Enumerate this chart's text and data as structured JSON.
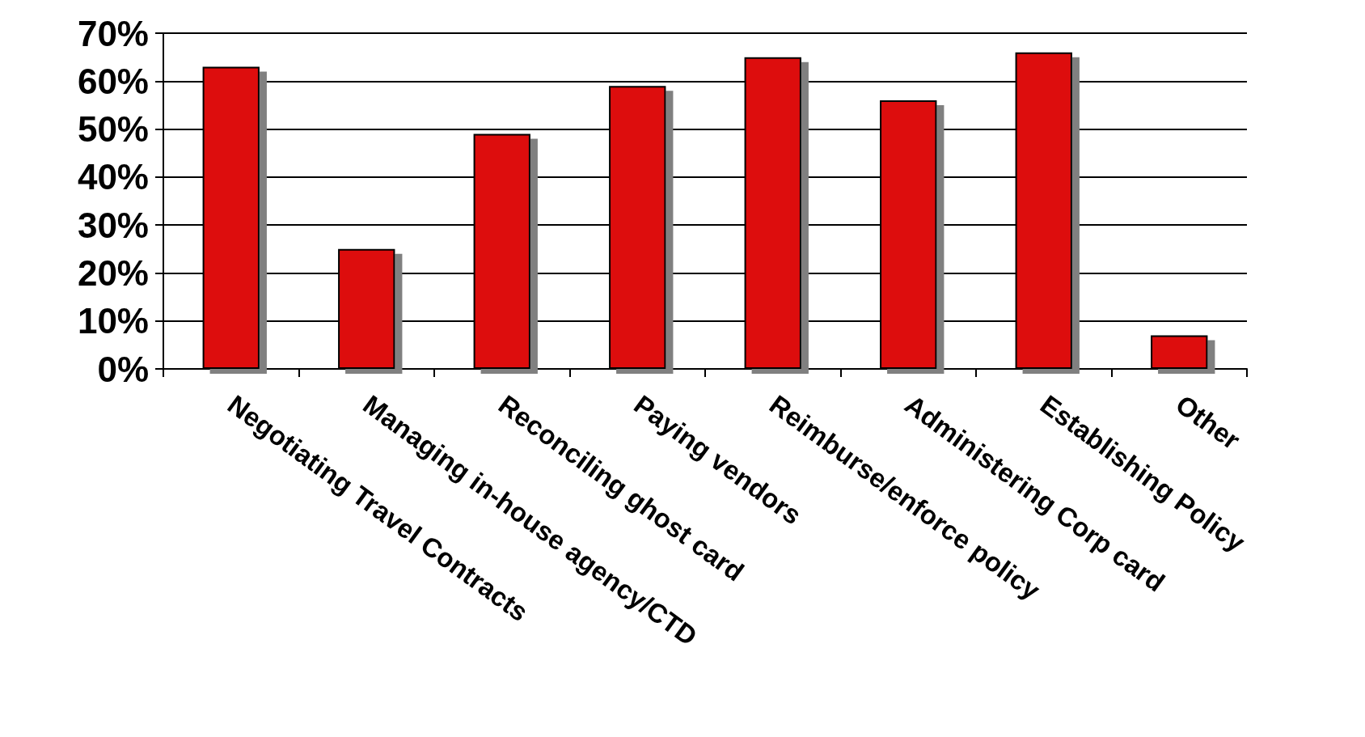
{
  "chart_data": {
    "type": "bar",
    "categories": [
      "Negotiating Travel Contracts",
      "Managing in-house agency/CTD",
      "Reconciling ghost card",
      "Paying vendors",
      "Reimburse/enforce policy",
      "Administering Corp card",
      "Establishing Policy",
      "Other"
    ],
    "values": [
      63,
      25,
      49,
      59,
      65,
      56,
      66,
      7
    ],
    "color": "#dd0808",
    "ylim": [
      0,
      70
    ],
    "yticks": [
      {
        "value": 0,
        "label": "0%"
      },
      {
        "value": 10,
        "label": "10%"
      },
      {
        "value": 20,
        "label": "20%"
      },
      {
        "value": 30,
        "label": "30%"
      },
      {
        "value": 40,
        "label": "40%"
      },
      {
        "value": 50,
        "label": "50%"
      },
      {
        "value": 60,
        "label": "60%"
      },
      {
        "value": 70,
        "label": "70%"
      }
    ],
    "grid": "y"
  }
}
